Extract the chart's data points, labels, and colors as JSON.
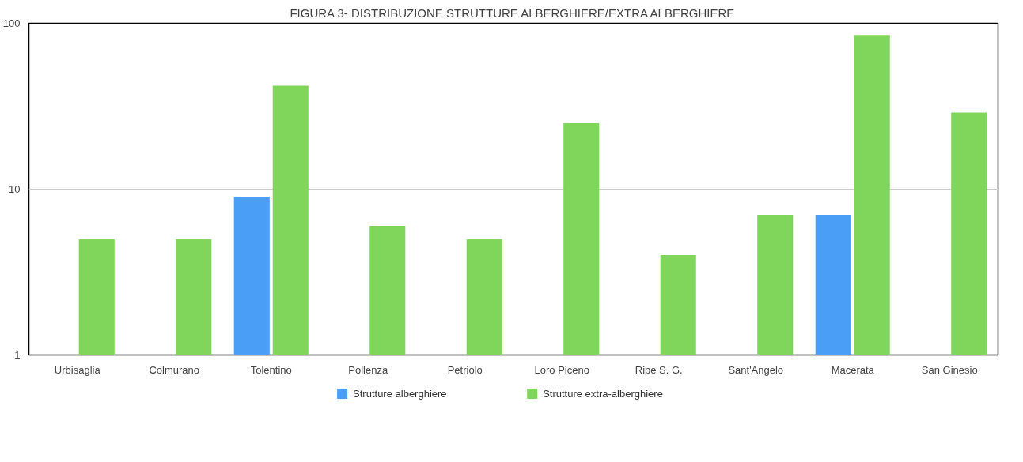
{
  "chart_data": {
    "type": "bar",
    "title": "FIGURA 3- DISTRIBUZIONE STRUTTURE ALBERGHIERE/EXTRA ALBERGHIERE",
    "categories": [
      "Urbisaglia",
      "Colmurano",
      "Tolentino",
      "Pollenza",
      "Petriolo",
      "Loro Piceno",
      "Ripe S. G.",
      "Sant'Angelo",
      "Macerata",
      "San Ginesio"
    ],
    "series": [
      {
        "name": "Strutture alberghiere",
        "color": "#4a9ef5",
        "values": [
          null,
          null,
          9,
          null,
          null,
          null,
          null,
          null,
          7,
          null
        ]
      },
      {
        "name": "Strutture extra-alberghiere",
        "color": "#7fd65a",
        "values": [
          5,
          5,
          42,
          6,
          5,
          25,
          4,
          7,
          85,
          29
        ]
      }
    ],
    "log": true,
    "ylim": [
      1,
      100
    ],
    "yticks": [
      1,
      10,
      100
    ],
    "grid": "y",
    "legend": "bottom"
  }
}
